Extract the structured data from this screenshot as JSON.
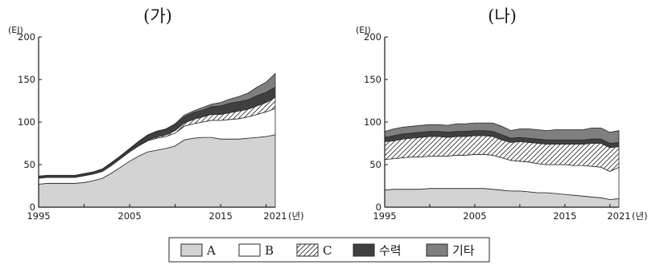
{
  "chart_data": [
    {
      "type": "area",
      "title": "(가)",
      "ylabel": "(EJ)",
      "xlabel": "(년)",
      "ylim": [
        0,
        200
      ],
      "yticks": [
        0,
        50,
        100,
        150,
        200
      ],
      "xlim": [
        1995,
        2021
      ],
      "xticks": [
        "1995",
        "2005",
        "2015",
        "2021"
      ],
      "stacked": true,
      "x": [
        1995,
        1996,
        1997,
        1998,
        1999,
        2000,
        2001,
        2002,
        2003,
        2004,
        2005,
        2006,
        2007,
        2008,
        2009,
        2010,
        2011,
        2012,
        2013,
        2014,
        2015,
        2016,
        2017,
        2018,
        2019,
        2020,
        2021
      ],
      "series": [
        {
          "name": "A",
          "values": [
            27,
            28,
            28,
            28,
            28,
            29,
            31,
            34,
            40,
            47,
            54,
            60,
            65,
            67,
            69,
            72,
            79,
            81,
            82,
            82,
            80,
            80,
            80,
            81,
            82,
            83,
            85
          ]
        },
        {
          "name": "B",
          "values": [
            7,
            7,
            7,
            7,
            7,
            8,
            8,
            8,
            9,
            10,
            11,
            12,
            13,
            14,
            14,
            15,
            16,
            17,
            18,
            20,
            22,
            23,
            24,
            25,
            27,
            29,
            31
          ]
        },
        {
          "name": "C",
          "values": [
            0,
            0,
            0,
            0,
            0,
            0,
            0,
            0,
            0,
            0,
            0,
            0.5,
            1,
            1.5,
            2,
            3,
            4,
            5,
            6,
            7,
            7,
            8,
            9,
            9,
            10,
            11,
            13
          ]
        },
        {
          "name": "수력",
          "values": [
            2,
            2,
            2,
            2,
            2,
            2,
            2,
            2.5,
            3,
            3,
            3,
            4,
            5,
            6,
            6,
            7,
            7,
            8,
            8,
            9,
            10,
            11,
            11,
            11,
            12,
            12,
            12
          ]
        },
        {
          "name": "기타",
          "values": [
            0.5,
            0.5,
            0.5,
            0.5,
            0.5,
            0.5,
            0.5,
            0.5,
            0.5,
            0.5,
            1,
            1,
            1,
            1,
            1,
            1,
            2,
            2,
            3,
            3,
            4,
            5,
            6,
            8,
            10,
            12,
            16
          ]
        }
      ]
    },
    {
      "type": "area",
      "title": "(나)",
      "ylabel": "(EJ)",
      "xlabel": "(년)",
      "ylim": [
        0,
        200
      ],
      "yticks": [
        0,
        50,
        100,
        150,
        200
      ],
      "xlim": [
        1995,
        2021
      ],
      "xticks": [
        "1995",
        "2005",
        "2015",
        "2021"
      ],
      "stacked": true,
      "x": [
        1995,
        1996,
        1997,
        1998,
        1999,
        2000,
        2001,
        2002,
        2003,
        2004,
        2005,
        2006,
        2007,
        2008,
        2009,
        2010,
        2011,
        2012,
        2013,
        2014,
        2015,
        2016,
        2017,
        2018,
        2019,
        2020,
        2021
      ],
      "series": [
        {
          "name": "A",
          "values": [
            20,
            21,
            21,
            21,
            21,
            22,
            22,
            22,
            22,
            22,
            22,
            22,
            21,
            20,
            19,
            19,
            18,
            17,
            17,
            16,
            15,
            14,
            13,
            12,
            11,
            9,
            10
          ]
        },
        {
          "name": "B",
          "values": [
            36,
            36,
            37,
            38,
            38,
            38,
            38,
            38,
            39,
            39,
            40,
            40,
            40,
            38,
            36,
            35,
            35,
            34,
            33,
            34,
            35,
            35,
            36,
            36,
            36,
            33,
            37
          ]
        },
        {
          "name": "C",
          "values": [
            21,
            21,
            22,
            22,
            23,
            23,
            23,
            22,
            22,
            22,
            22,
            22,
            22,
            21,
            21,
            23,
            23,
            24,
            24,
            24,
            24,
            25,
            25,
            27,
            28,
            28,
            24
          ]
        },
        {
          "name": "수력",
          "values": [
            5,
            6,
            6,
            6,
            6,
            6,
            6,
            6,
            6,
            6,
            6,
            6,
            6,
            6,
            5,
            5,
            5,
            5,
            5,
            5,
            5,
            5,
            5,
            5,
            5,
            5,
            5
          ]
        },
        {
          "name": "기타",
          "values": [
            7,
            8,
            8,
            8,
            8,
            8,
            8,
            8,
            9,
            9,
            9,
            9,
            10,
            10,
            9,
            10,
            11,
            11,
            11,
            12,
            12,
            12,
            12,
            13,
            13,
            13,
            14
          ]
        }
      ]
    }
  ],
  "legend": {
    "placement": "bottom-center",
    "items": [
      {
        "label": "A",
        "fill": "#d3d3d3"
      },
      {
        "label": "B",
        "fill": "#ffffff"
      },
      {
        "label": "C",
        "fill": "hatch"
      },
      {
        "label": "수력",
        "fill": "#404040"
      },
      {
        "label": "기타",
        "fill": "#7f7f7f"
      }
    ]
  },
  "colors": {
    "A": "#d3d3d3",
    "B": "#ffffff",
    "C": "#ffffff",
    "수력": "#404040",
    "기타": "#7f7f7f",
    "stroke": "#2a2a2a"
  }
}
